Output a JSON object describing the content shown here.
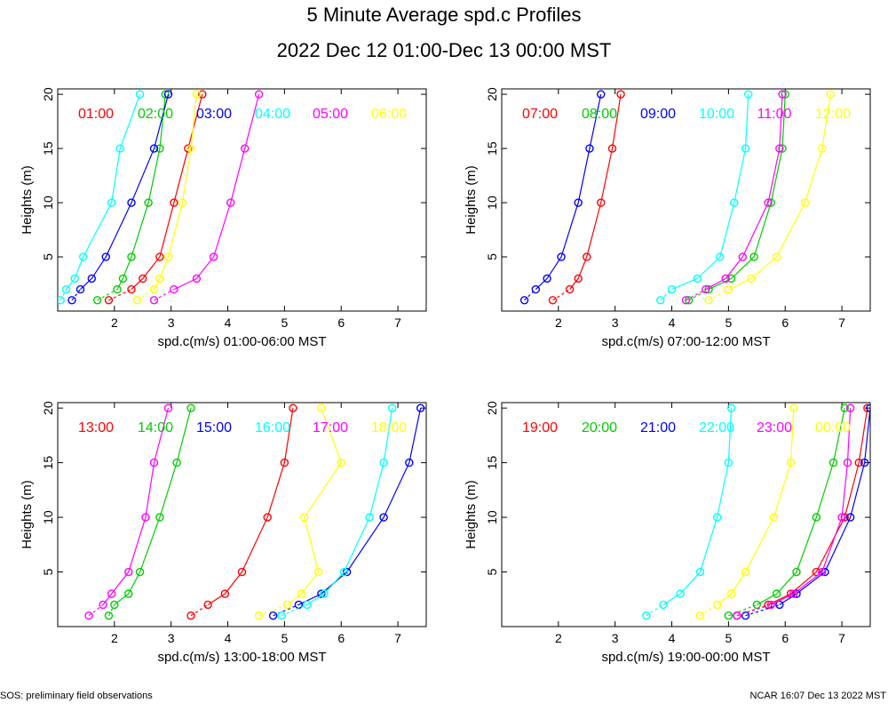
{
  "header": {
    "title": "5 Minute Average spd.c Profiles",
    "subtitle": "2022 Dec 12 01:00-Dec 13 00:00 MST"
  },
  "footer": {
    "left": "SOS: preliminary field observations",
    "right": "NCAR 16:07 Dec 13 2022 MST"
  },
  "chart_data": [
    {
      "type": "line",
      "xlabel": "spd.c(m/s) 01:00-06:00 MST",
      "ylabel": "Heights (m)",
      "xlim": [
        1,
        7.5
      ],
      "ylim": [
        0,
        20.5
      ],
      "xticks": [
        2,
        3,
        4,
        5,
        6,
        7
      ],
      "yticks": [
        5,
        10,
        15,
        20
      ],
      "heights": [
        1,
        2,
        3,
        5,
        10,
        15,
        20
      ],
      "series": [
        {
          "name": "01:00",
          "color": "#ff0000",
          "values": [
            1.9,
            2.3,
            2.5,
            2.8,
            3.05,
            3.3,
            3.55
          ]
        },
        {
          "name": "02:00",
          "color": "#00cc00",
          "values": [
            1.7,
            2.05,
            2.15,
            2.3,
            2.6,
            2.8,
            2.9
          ]
        },
        {
          "name": "03:00",
          "color": "#0000ff",
          "values": [
            1.25,
            1.4,
            1.6,
            1.85,
            2.3,
            2.7,
            2.95
          ]
        },
        {
          "name": "04:00",
          "color": "#00ffff",
          "values": [
            1.05,
            1.15,
            1.3,
            1.45,
            1.95,
            2.1,
            2.45
          ]
        },
        {
          "name": "05:00",
          "color": "#ff00ff",
          "values": [
            2.7,
            3.05,
            3.45,
            3.75,
            4.05,
            4.3,
            4.55
          ]
        },
        {
          "name": "06:00",
          "color": "#ffff00",
          "values": [
            2.4,
            2.7,
            2.8,
            2.95,
            3.2,
            3.35,
            3.45
          ]
        }
      ]
    },
    {
      "type": "line",
      "xlabel": "spd.c(m/s) 07:00-12:00 MST",
      "ylabel": "Heights (m)",
      "xlim": [
        1,
        7.5
      ],
      "ylim": [
        0,
        20.5
      ],
      "xticks": [
        2,
        3,
        4,
        5,
        6,
        7
      ],
      "yticks": [
        5,
        10,
        15,
        20
      ],
      "heights": [
        1,
        2,
        3,
        5,
        10,
        15,
        20
      ],
      "series": [
        {
          "name": "07:00",
          "color": "#ff0000",
          "values": [
            1.9,
            2.2,
            2.35,
            2.5,
            2.75,
            2.95,
            3.1
          ]
        },
        {
          "name": "08:00",
          "color": "#00cc00",
          "values": [
            4.3,
            4.65,
            5.05,
            5.45,
            5.75,
            5.95,
            6.0
          ]
        },
        {
          "name": "09:00",
          "color": "#0000ff",
          "values": [
            1.4,
            1.6,
            1.8,
            2.05,
            2.35,
            2.55,
            2.75
          ]
        },
        {
          "name": "10:00",
          "color": "#00ffff",
          "values": [
            3.8,
            4.0,
            4.45,
            4.85,
            5.1,
            5.3,
            5.35
          ]
        },
        {
          "name": "11:00",
          "color": "#ff00ff",
          "values": [
            4.25,
            4.6,
            4.95,
            5.25,
            5.7,
            5.9,
            5.95
          ]
        },
        {
          "name": "12:00",
          "color": "#ffff00",
          "values": [
            4.65,
            5.0,
            5.4,
            5.85,
            6.35,
            6.65,
            6.8
          ]
        }
      ]
    },
    {
      "type": "line",
      "xlabel": "spd.c(m/s) 13:00-18:00 MST",
      "ylabel": "Heights (m)",
      "xlim": [
        1,
        7.5
      ],
      "ylim": [
        0,
        20.5
      ],
      "xticks": [
        2,
        3,
        4,
        5,
        6,
        7
      ],
      "yticks": [
        5,
        10,
        15,
        20
      ],
      "heights": [
        1,
        2,
        3,
        5,
        10,
        15,
        20
      ],
      "series": [
        {
          "name": "13:00",
          "color": "#ff0000",
          "values": [
            3.35,
            3.65,
            3.95,
            4.25,
            4.7,
            5.0,
            5.15
          ]
        },
        {
          "name": "14:00",
          "color": "#00cc00",
          "values": [
            1.9,
            2.0,
            2.25,
            2.45,
            2.8,
            3.1,
            3.35
          ]
        },
        {
          "name": "15:00",
          "color": "#0000ff",
          "values": [
            4.8,
            5.25,
            5.65,
            6.1,
            6.75,
            7.2,
            7.4
          ]
        },
        {
          "name": "16:00",
          "color": "#00ffff",
          "values": [
            4.95,
            5.4,
            5.7,
            6.05,
            6.5,
            6.75,
            6.9
          ]
        },
        {
          "name": "17:00",
          "color": "#ff00ff",
          "values": [
            1.55,
            1.8,
            1.95,
            2.25,
            2.55,
            2.7,
            2.95
          ]
        },
        {
          "name": "18:00",
          "color": "#ffff00",
          "values": [
            4.55,
            5.05,
            5.3,
            5.6,
            5.35,
            6.0,
            5.65
          ]
        }
      ]
    },
    {
      "type": "line",
      "xlabel": "spd.c(m/s) 19:00-00:00 MST",
      "ylabel": "Heights (m)",
      "xlim": [
        1,
        7.5
      ],
      "ylim": [
        0,
        20.5
      ],
      "xticks": [
        2,
        3,
        4,
        5,
        6,
        7
      ],
      "yticks": [
        5,
        10,
        15,
        20
      ],
      "heights": [
        1,
        2,
        3,
        5,
        10,
        15,
        20
      ],
      "series": [
        {
          "name": "19:00",
          "color": "#ff0000",
          "values": [
            5.15,
            5.7,
            6.1,
            6.55,
            7.05,
            7.3,
            7.45
          ]
        },
        {
          "name": "20:00",
          "color": "#00cc00",
          "values": [
            5.0,
            5.5,
            5.85,
            6.2,
            6.55,
            6.85,
            7.05
          ]
        },
        {
          "name": "21:00",
          "color": "#0000ff",
          "values": [
            5.3,
            5.9,
            6.2,
            6.7,
            7.15,
            7.4,
            7.5
          ]
        },
        {
          "name": "22:00",
          "color": "#00ffff",
          "values": [
            3.55,
            3.85,
            4.15,
            4.5,
            4.8,
            5.0,
            5.05
          ]
        },
        {
          "name": "23:00",
          "color": "#ff00ff",
          "values": [
            5.15,
            5.75,
            6.15,
            6.65,
            7.0,
            7.1,
            7.15
          ]
        },
        {
          "name": "00:00",
          "color": "#ffff00",
          "values": [
            4.5,
            4.8,
            5.05,
            5.3,
            5.8,
            6.1,
            6.15
          ]
        }
      ]
    }
  ]
}
